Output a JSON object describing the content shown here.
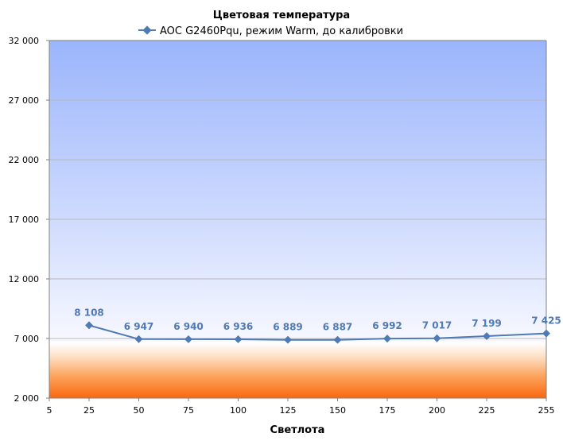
{
  "chart_data": {
    "type": "line",
    "title": "Цветовая температура",
    "xlabel": "Светлота",
    "ylabel": "",
    "x_ticks": [
      5,
      25,
      50,
      75,
      100,
      125,
      150,
      175,
      200,
      225,
      255
    ],
    "y_ticks": [
      "2 000",
      "7 000",
      "12 000",
      "17 000",
      "22 000",
      "27 000",
      "32 000"
    ],
    "y_tick_values": [
      2000,
      7000,
      12000,
      17000,
      22000,
      27000,
      32000
    ],
    "xlim": [
      5,
      255
    ],
    "ylim": [
      2000,
      32000
    ],
    "grid": true,
    "legend_position": "top",
    "series": [
      {
        "name": "AOC G2460Pqu, режим Warm, до калибровки",
        "color": "#4f7ab3",
        "x": [
          25,
          50,
          75,
          100,
          125,
          150,
          175,
          200,
          225,
          255
        ],
        "values": [
          8108,
          6947,
          6940,
          6936,
          6889,
          6887,
          6992,
          7017,
          7199,
          7425
        ],
        "labels": [
          "8 108",
          "6 947",
          "6 940",
          "6 936",
          "6 889",
          "6 887",
          "6 992",
          "7 017",
          "7 199",
          "7 425"
        ]
      }
    ]
  }
}
